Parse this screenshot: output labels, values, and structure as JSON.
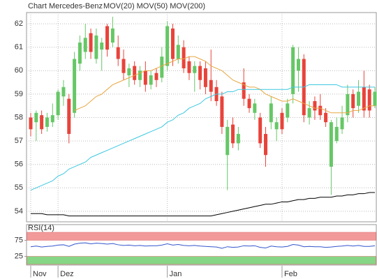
{
  "chart_data": [
    {
      "type": "candlestick",
      "title": "Chart Mercedes-Benz",
      "categories": [
        "Nov",
        null,
        null,
        null,
        null,
        "Dez",
        null,
        null,
        null,
        null,
        null,
        null,
        null,
        null,
        null,
        null,
        null,
        null,
        null,
        null,
        null,
        null,
        null,
        null,
        null,
        "Jan",
        null,
        null,
        null,
        null,
        null,
        null,
        null,
        null,
        null,
        null,
        null,
        null,
        null,
        null,
        null,
        null,
        null,
        null,
        null,
        null,
        "Feb",
        null,
        null,
        null,
        null,
        null,
        null,
        null,
        null,
        null,
        null,
        null,
        null,
        null,
        null,
        null,
        null,
        null
      ],
      "open": [
        58.0,
        57.8,
        58.1,
        57.6,
        57.8,
        58.1,
        58.9,
        58.8,
        58.2,
        60.3,
        60.8,
        61.6,
        60.5,
        60.9,
        61.9,
        61.2,
        61.0,
        60.5,
        59.8,
        60.2,
        59.6,
        60.0,
        59.4,
        59.9,
        59.7,
        60.2,
        61.8,
        60.5,
        61.0,
        60.4,
        59.9,
        60.2,
        60.1,
        59.6,
        59.3,
        58.9,
        56.4,
        57.7,
        56.9,
        59.5,
        58.8,
        58.2,
        58.0,
        57.3,
        57.8,
        57.5,
        58.2,
        58.0,
        59.0,
        60.0,
        60.5,
        58.0,
        58.7,
        58.5,
        58.2,
        55.9,
        57.0,
        57.5,
        58.1,
        59.0,
        58.5,
        59.3,
        59.2,
        58.5
      ],
      "high": [
        58.2,
        58.3,
        58.3,
        58.2,
        58.6,
        59.2,
        59.6,
        59.0,
        60.8,
        61.5,
        62.0,
        61.8,
        61.8,
        61.4,
        62.0,
        62.3,
        61.5,
        60.9,
        60.3,
        60.4,
        60.2,
        60.4,
        60.0,
        60.1,
        61.0,
        62.1,
        62.0,
        61.5,
        61.3,
        60.6,
        60.4,
        60.4,
        60.4,
        60.9,
        59.6,
        59.1,
        57.9,
        58.0,
        57.6,
        60.1,
        59.0,
        58.8,
        58.2,
        57.6,
        58.9,
        58.0,
        58.4,
        58.8,
        61.1,
        61.0,
        60.7,
        58.7,
        58.9,
        59.0,
        58.4,
        57.9,
        58.0,
        58.5,
        59.4,
        59.2,
        59.6,
        60.0,
        59.4,
        59.3
      ],
      "low": [
        57.2,
        57.0,
        57.3,
        57.4,
        57.6,
        57.9,
        58.5,
        56.9,
        58.0,
        60.0,
        60.5,
        60.5,
        60.3,
        60.0,
        60.6,
        61.0,
        60.2,
        59.6,
        59.3,
        59.4,
        59.3,
        59.1,
        59.2,
        59.3,
        59.5,
        60.0,
        60.2,
        60.3,
        59.9,
        59.6,
        59.1,
        59.2,
        59.0,
        58.7,
        58.5,
        57.3,
        54.9,
        56.7,
        56.6,
        58.5,
        58.2,
        57.9,
        56.7,
        55.9,
        57.5,
        57.0,
        57.3,
        57.8,
        58.6,
        59.1,
        57.8,
        57.7,
        57.9,
        57.9,
        57.6,
        54.7,
        56.9,
        57.3,
        57.8,
        58.0,
        58.2,
        58.0,
        58.0,
        58.4
      ],
      "close": [
        57.5,
        58.2,
        57.5,
        58.0,
        58.1,
        59.1,
        59.3,
        57.3,
        60.5,
        61.2,
        61.4,
        60.8,
        61.5,
        61.2,
        60.9,
        61.8,
        60.5,
        59.9,
        60.1,
        59.6,
        60.0,
        59.4,
        59.8,
        59.6,
        60.6,
        61.9,
        60.5,
        61.1,
        60.1,
        59.9,
        60.2,
        59.6,
        59.3,
        59.1,
        58.7,
        57.6,
        57.6,
        56.9,
        57.3,
        58.8,
        58.4,
        58.6,
        56.9,
        56.4,
        58.6,
        57.8,
        57.5,
        58.6,
        61.0,
        60.5,
        58.1,
        58.4,
        58.3,
        58.1,
        57.8,
        57.8,
        57.6,
        58.0,
        59.0,
        58.4,
        59.1,
        58.3,
        58.3,
        59.1
      ],
      "up_color": "#66c766",
      "down_color": "#e8433a",
      "series": [
        {
          "name": "MOV(20)",
          "color": "#e8a640",
          "values": [
            null,
            null,
            null,
            null,
            null,
            null,
            null,
            null,
            58.3,
            58.4,
            58.5,
            58.7,
            58.9,
            59.0,
            59.2,
            59.4,
            59.5,
            59.6,
            59.7,
            59.8,
            59.9,
            60.0,
            60.0,
            60.1,
            60.2,
            60.3,
            60.4,
            60.5,
            60.5,
            60.6,
            60.6,
            60.5,
            60.4,
            60.2,
            60.1,
            60.0,
            59.8,
            59.6,
            59.5,
            59.4,
            59.3,
            59.3,
            59.2,
            59.0,
            58.9,
            58.8,
            58.7,
            58.7,
            58.8,
            58.7,
            58.6,
            58.5,
            58.4,
            58.4,
            58.3,
            58.2,
            58.2,
            58.2,
            58.2,
            58.3,
            58.3,
            58.4,
            58.5,
            58.5
          ]
        },
        {
          "name": "MOV(50)",
          "color": "#3cc8e0",
          "values": [
            54.9,
            55.0,
            55.1,
            55.2,
            55.3,
            55.5,
            55.6,
            55.8,
            55.9,
            56.0,
            56.1,
            56.3,
            56.4,
            56.5,
            56.6,
            56.7,
            56.8,
            56.9,
            57.0,
            57.1,
            57.2,
            57.3,
            57.4,
            57.5,
            57.6,
            57.8,
            57.9,
            58.1,
            58.2,
            58.4,
            58.5,
            58.6,
            58.8,
            58.9,
            59.0,
            59.0,
            59.1,
            59.1,
            59.2,
            59.2,
            59.2,
            59.2,
            59.2,
            59.2,
            59.2,
            59.2,
            59.2,
            59.2,
            59.3,
            59.3,
            59.3,
            59.4,
            59.4,
            59.4,
            59.4,
            59.4,
            59.4,
            59.3,
            59.3,
            59.3,
            59.3,
            59.3,
            59.3,
            59.3
          ]
        },
        {
          "name": "MOV(200)",
          "color": "#000000",
          "values": [
            53.9,
            53.9,
            53.9,
            53.85,
            53.85,
            53.85,
            53.85,
            53.8,
            53.8,
            53.8,
            53.8,
            53.8,
            53.8,
            53.8,
            53.8,
            53.8,
            53.8,
            53.8,
            53.8,
            53.8,
            53.8,
            53.8,
            53.8,
            53.8,
            53.8,
            53.8,
            53.8,
            53.8,
            53.8,
            53.8,
            53.8,
            53.8,
            53.8,
            53.8,
            53.85,
            53.9,
            53.95,
            54.0,
            54.05,
            54.1,
            54.15,
            54.2,
            54.25,
            54.3,
            54.3,
            54.35,
            54.4,
            54.4,
            54.45,
            54.5,
            54.5,
            54.55,
            54.55,
            54.6,
            54.6,
            54.6,
            54.65,
            54.65,
            54.7,
            54.7,
            54.75,
            54.75,
            54.8,
            54.8
          ]
        }
      ],
      "ylim": [
        53.55,
        62.48
      ],
      "yticks": [
        54,
        55,
        56,
        57,
        58,
        59,
        60,
        61,
        62
      ],
      "grid": true
    },
    {
      "type": "line",
      "title": "RSI(14)",
      "series": [
        {
          "color": "#3355cc",
          "values": [
            55,
            57,
            54,
            56,
            57,
            60,
            61,
            56,
            63,
            66,
            67,
            64,
            66,
            65,
            63,
            65,
            61,
            59,
            60,
            58,
            59,
            57,
            58,
            58,
            60,
            64,
            60,
            62,
            59,
            58,
            59,
            57,
            56,
            55,
            54,
            50,
            55,
            53,
            54,
            58,
            57,
            58,
            53,
            51,
            57,
            55,
            54,
            56,
            62,
            60,
            55,
            56,
            55,
            55,
            53,
            54,
            56,
            57,
            59,
            57,
            59,
            56,
            56,
            58
          ]
        }
      ],
      "bands": [
        {
          "from": 75,
          "to": 100,
          "color": "#f29a9a"
        },
        {
          "from": 0,
          "to": 25,
          "color": "#86d686"
        }
      ],
      "ylim": [
        0,
        100
      ],
      "yticks": [
        25,
        75
      ]
    }
  ]
}
